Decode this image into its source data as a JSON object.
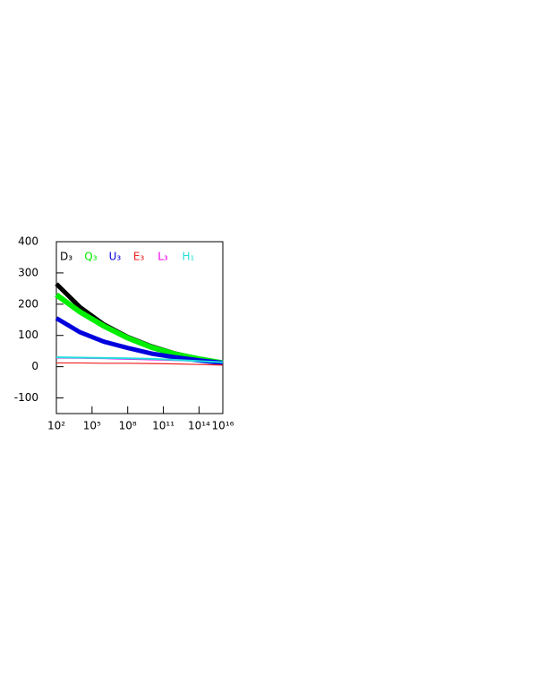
{
  "chart_data": {
    "type": "line",
    "x": [
      100,
      10000,
      1000000,
      100000000,
      10000000000,
      1000000000000,
      100000000000000,
      10000000000000000
    ],
    "series": [
      {
        "name": "D₃",
        "color": "#000000",
        "values": [
          265,
          190,
          135,
          95,
          65,
          42,
          25,
          10
        ]
      },
      {
        "name": "Q₃",
        "color": "#00ee00",
        "values": [
          230,
          175,
          130,
          92,
          62,
          40,
          25,
          12
        ]
      },
      {
        "name": "U₃",
        "color": "#0000dd",
        "values": [
          155,
          110,
          80,
          60,
          42,
          30,
          20,
          12
        ]
      },
      {
        "name": "E₃",
        "color": "#ee2222",
        "values": [
          12,
          12,
          11,
          11,
          10,
          9,
          7,
          5
        ]
      },
      {
        "name": "L₃",
        "color": "#ee00ee",
        "values": [
          28,
          27,
          26,
          24,
          22,
          20,
          17,
          14
        ]
      },
      {
        "name": "H₁",
        "color": "#22dddd",
        "values": [
          30,
          29,
          28,
          27,
          25,
          22,
          18,
          14
        ]
      }
    ],
    "xlim": [
      100,
      10000000000000000
    ],
    "xlog": true,
    "xticks": [
      {
        "value": 100,
        "label": "10²"
      },
      {
        "value": 100000,
        "label": "10⁵"
      },
      {
        "value": 100000000,
        "label": "10⁸"
      },
      {
        "value": 100000000000,
        "label": "10¹¹"
      },
      {
        "value": 100000000000000,
        "label": "10¹⁴"
      },
      {
        "value": 10000000000000000,
        "label": "10¹⁶"
      }
    ],
    "ylim": [
      -150,
      400
    ],
    "yticks": [
      -100,
      0,
      100,
      200,
      300,
      400
    ]
  }
}
